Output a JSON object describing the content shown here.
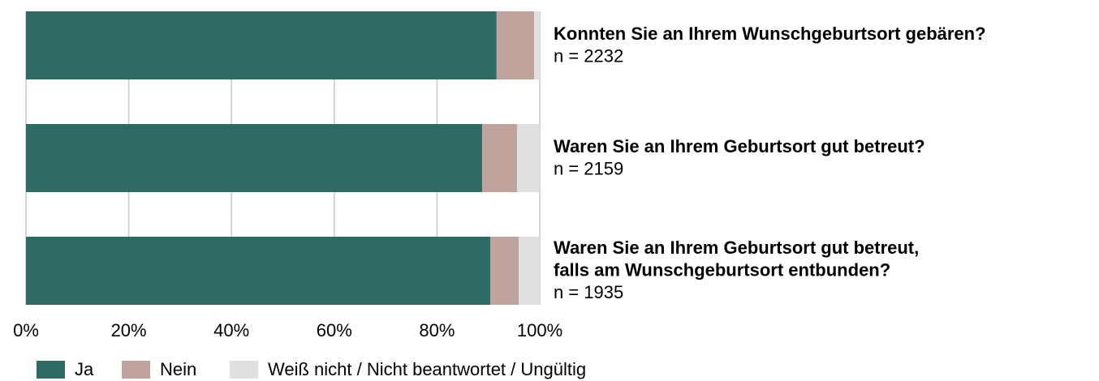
{
  "chart_data": {
    "type": "stacked_barh",
    "categories": [
      [
        "Konnten Sie an Ihrem Wunschgeburtsort gebären?"
      ],
      [
        "Waren Sie an Ihrem Geburtsort gut betreut?"
      ],
      [
        "Waren Sie an Ihrem Geburtsort gut betreut,",
        "falls am Wunschgeburtsort entbunden?"
      ]
    ],
    "sample_sizes": [
      "n = 2232",
      "n = 2159",
      "n = 1935"
    ],
    "series": [
      {
        "name": "Ja",
        "color": "#2e6b64",
        "values": [
          91.6,
          88.8,
          90.4
        ]
      },
      {
        "name": "Nein",
        "color": "#bfa39c",
        "values": [
          7.3,
          6.8,
          5.5
        ]
      },
      {
        "name": "Weiß nicht / Nicht beantwortet / Ungültig",
        "color": "#e0e0e0",
        "values": [
          1.1,
          4.4,
          4.1
        ]
      }
    ],
    "xlim": [
      0,
      100
    ],
    "xticks": [
      {
        "value": 0,
        "label": "0%"
      },
      {
        "value": 20,
        "label": "20%"
      },
      {
        "value": 40,
        "label": "40%"
      },
      {
        "value": 60,
        "label": "60%"
      },
      {
        "value": 80,
        "label": "80%"
      },
      {
        "value": 100,
        "label": "100%"
      }
    ],
    "grid": true,
    "legend": "bottom"
  }
}
